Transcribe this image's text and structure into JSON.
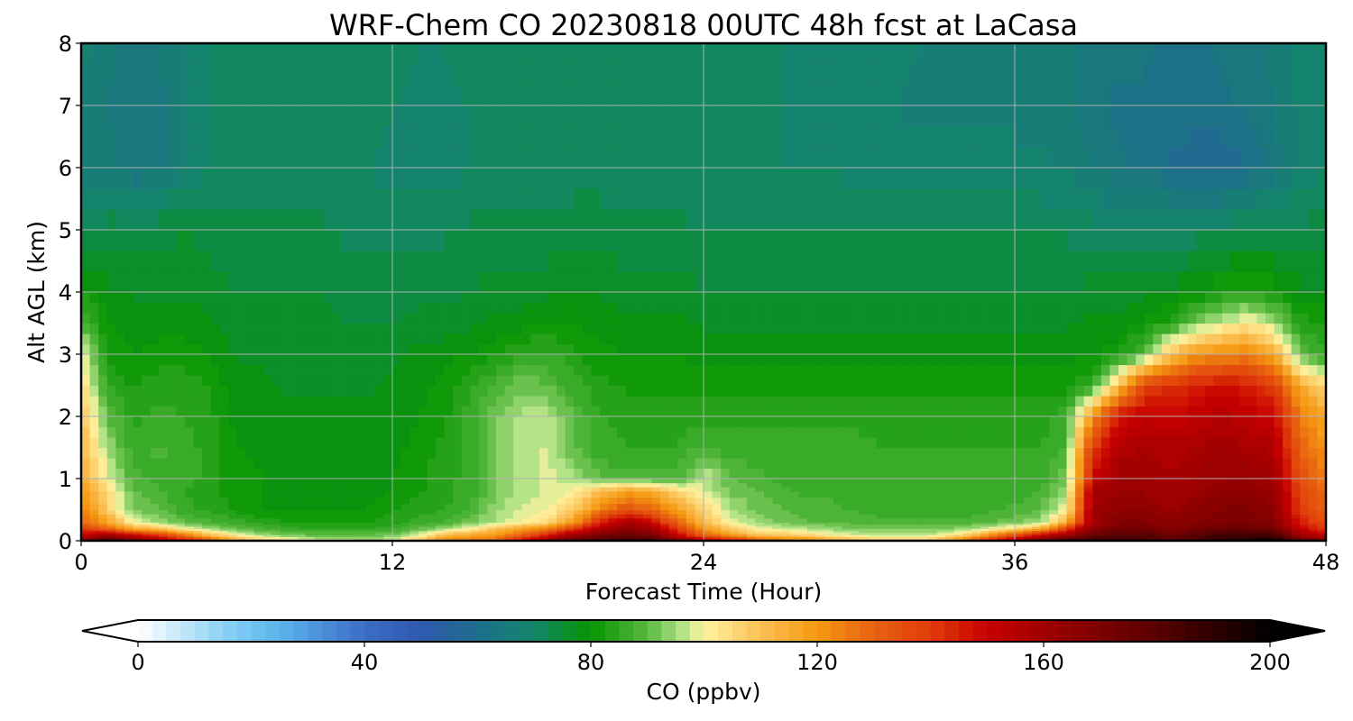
{
  "chart_data": {
    "type": "heatmap",
    "title": "WRF-Chem CO  20230818 00UTC 48h fcst at LaCasa",
    "xlabel": "Forecast Time (Hour)",
    "ylabel": "Alt AGL (km)",
    "xlim": [
      0,
      48
    ],
    "ylim": [
      0,
      8
    ],
    "xticks": [
      0,
      12,
      24,
      36,
      48
    ],
    "xtick_labels": [
      "0",
      "12",
      "24",
      "36",
      "48"
    ],
    "yticks": [
      0,
      1,
      2,
      3,
      4,
      5,
      6,
      7,
      8
    ],
    "ytick_labels": [
      "0",
      "1",
      "2",
      "3",
      "4",
      "5",
      "6",
      "7",
      "8"
    ],
    "grid": true,
    "x": [
      0,
      1,
      2,
      3,
      4,
      5,
      6,
      7,
      8,
      9,
      10,
      11,
      12,
      13,
      14,
      15,
      16,
      17,
      18,
      19,
      20,
      21,
      22,
      23,
      24,
      25,
      26,
      27,
      28,
      29,
      30,
      31,
      32,
      33,
      34,
      35,
      36,
      37,
      38,
      39,
      40,
      41,
      42,
      43,
      44,
      45,
      46,
      47,
      48
    ],
    "y": [
      0,
      0.1,
      0.2,
      0.3,
      0.5,
      0.8,
      1.0,
      1.5,
      2.0,
      2.5,
      3.0,
      3.5,
      4.0,
      5.0,
      6.0,
      7.0,
      8.0
    ],
    "z_units": "CO  (ppbv)",
    "z": [
      [
        165,
        190,
        170,
        160,
        150,
        135,
        120,
        110,
        105,
        100,
        98,
        95,
        100,
        110,
        125,
        130,
        130,
        150,
        170,
        180,
        185,
        190,
        190,
        170,
        160,
        150,
        140,
        130,
        130,
        120,
        115,
        110,
        110,
        115,
        130,
        150,
        160,
        175,
        190,
        190,
        185,
        185,
        180,
        185,
        190,
        195,
        200,
        180,
        175
      ],
      [
        150,
        160,
        150,
        140,
        125,
        110,
        100,
        95,
        92,
        90,
        90,
        90,
        92,
        98,
        110,
        115,
        120,
        130,
        145,
        160,
        170,
        175,
        170,
        150,
        130,
        120,
        110,
        108,
        105,
        100,
        98,
        96,
        96,
        98,
        105,
        120,
        135,
        150,
        160,
        175,
        180,
        180,
        175,
        180,
        185,
        185,
        185,
        160,
        150
      ],
      [
        140,
        130,
        115,
        110,
        100,
        95,
        90,
        88,
        86,
        85,
        85,
        85,
        86,
        90,
        95,
        100,
        110,
        118,
        125,
        140,
        155,
        165,
        160,
        140,
        120,
        108,
        100,
        98,
        96,
        94,
        92,
        92,
        92,
        92,
        94,
        98,
        105,
        115,
        140,
        165,
        172,
        172,
        168,
        172,
        175,
        175,
        172,
        150,
        140
      ],
      [
        130,
        118,
        100,
        95,
        90,
        88,
        86,
        84,
        82,
        82,
        82,
        82,
        84,
        86,
        88,
        92,
        96,
        100,
        105,
        120,
        145,
        158,
        150,
        130,
        112,
        100,
        95,
        92,
        90,
        90,
        89,
        88,
        88,
        88,
        88,
        90,
        92,
        95,
        115,
        160,
        168,
        168,
        165,
        168,
        170,
        170,
        168,
        145,
        135
      ],
      [
        125,
        108,
        92,
        90,
        86,
        84,
        82,
        80,
        80,
        80,
        80,
        80,
        82,
        84,
        85,
        88,
        94,
        98,
        100,
        108,
        125,
        135,
        130,
        118,
        106,
        96,
        92,
        90,
        88,
        88,
        87,
        86,
        86,
        86,
        86,
        87,
        88,
        90,
        100,
        160,
        165,
        165,
        162,
        165,
        168,
        168,
        165,
        140,
        130
      ],
      [
        120,
        105,
        90,
        88,
        85,
        83,
        81,
        80,
        79,
        79,
        79,
        79,
        80,
        82,
        84,
        86,
        92,
        96,
        98,
        100,
        110,
        118,
        115,
        106,
        98,
        92,
        90,
        88,
        87,
        87,
        86,
        85,
        85,
        85,
        85,
        86,
        86,
        88,
        95,
        158,
        162,
        162,
        160,
        162,
        165,
        165,
        162,
        138,
        128
      ],
      [
        115,
        100,
        88,
        87,
        86,
        84,
        81,
        80,
        79,
        79,
        79,
        79,
        80,
        82,
        84,
        86,
        92,
        96,
        98,
        96,
        90,
        88,
        88,
        88,
        98,
        90,
        88,
        87,
        86,
        86,
        86,
        85,
        85,
        85,
        85,
        85,
        86,
        86,
        92,
        150,
        160,
        160,
        158,
        160,
        162,
        162,
        160,
        135,
        125
      ],
      [
        112,
        95,
        86,
        88,
        86,
        84,
        80,
        79,
        78,
        78,
        78,
        78,
        79,
        81,
        83,
        86,
        92,
        96,
        98,
        90,
        86,
        85,
        85,
        85,
        88,
        86,
        86,
        86,
        86,
        86,
        86,
        85,
        85,
        85,
        85,
        85,
        85,
        85,
        88,
        140,
        155,
        158,
        156,
        158,
        160,
        158,
        156,
        130,
        120
      ],
      [
        110,
        90,
        84,
        86,
        85,
        83,
        79,
        78,
        78,
        78,
        78,
        78,
        79,
        80,
        82,
        86,
        92,
        96,
        96,
        90,
        85,
        84,
        84,
        84,
        84,
        84,
        84,
        84,
        84,
        84,
        84,
        84,
        84,
        84,
        84,
        84,
        84,
        84,
        86,
        120,
        148,
        152,
        150,
        152,
        155,
        152,
        150,
        125,
        115
      ],
      [
        105,
        85,
        82,
        84,
        84,
        82,
        78,
        78,
        77,
        77,
        77,
        77,
        78,
        79,
        81,
        84,
        88,
        92,
        90,
        86,
        83,
        82,
        82,
        82,
        81,
        81,
        81,
        81,
        81,
        81,
        81,
        81,
        81,
        81,
        81,
        81,
        81,
        81,
        82,
        85,
        110,
        138,
        142,
        145,
        148,
        145,
        140,
        115,
        105
      ],
      [
        100,
        82,
        80,
        81,
        81,
        80,
        77,
        77,
        76,
        76,
        76,
        76,
        77,
        78,
        79,
        80,
        82,
        85,
        86,
        83,
        81,
        80,
        80,
        80,
        79,
        79,
        79,
        79,
        79,
        79,
        79,
        79,
        79,
        79,
        79,
        79,
        79,
        79,
        79,
        80,
        82,
        90,
        110,
        120,
        122,
        125,
        115,
        90,
        85
      ],
      [
        90,
        80,
        79,
        79,
        79,
        78,
        76,
        76,
        76,
        76,
        75,
        75,
        75,
        76,
        76,
        77,
        78,
        79,
        80,
        80,
        79,
        78,
        78,
        78,
        77,
        77,
        77,
        77,
        77,
        77,
        77,
        77,
        77,
        77,
        77,
        77,
        77,
        77,
        77,
        78,
        78,
        80,
        84,
        92,
        98,
        102,
        96,
        84,
        82
      ],
      [
        82,
        78,
        77,
        77,
        77,
        76,
        75,
        75,
        75,
        75,
        74,
        74,
        74,
        74,
        74,
        75,
        76,
        76,
        77,
        78,
        77,
        76,
        76,
        76,
        75,
        75,
        75,
        75,
        75,
        75,
        75,
        75,
        75,
        75,
        75,
        75,
        75,
        75,
        75,
        76,
        76,
        77,
        78,
        80,
        82,
        84,
        82,
        78,
        78
      ],
      [
        72,
        74,
        74,
        74,
        75,
        74,
        73,
        73,
        73,
        73,
        72,
        72,
        72,
        72,
        72,
        73,
        73,
        73,
        73,
        74,
        74,
        73,
        73,
        73,
        72,
        72,
        72,
        72,
        72,
        72,
        72,
        72,
        72,
        72,
        72,
        72,
        72,
        72,
        72,
        71,
        70,
        70,
        70,
        71,
        72,
        73,
        73,
        73,
        74
      ],
      [
        66,
        66,
        63,
        64,
        68,
        70,
        71,
        71,
        71,
        71,
        70,
        70,
        69,
        68,
        68,
        70,
        71,
        71,
        71,
        71,
        71,
        71,
        71,
        71,
        70,
        70,
        70,
        70,
        70,
        70,
        69,
        69,
        68,
        68,
        68,
        68,
        68,
        68,
        67,
        65,
        63,
        62,
        60,
        58,
        58,
        60,
        64,
        68,
        70
      ],
      [
        67,
        65,
        63,
        64,
        68,
        70,
        71,
        72,
        72,
        72,
        71,
        71,
        70,
        69,
        69,
        70,
        71,
        71,
        71,
        71,
        72,
        72,
        72,
        72,
        71,
        70,
        70,
        70,
        69,
        69,
        68,
        68,
        67,
        67,
        67,
        67,
        67,
        66,
        66,
        63,
        62,
        62,
        61,
        61,
        62,
        63,
        65,
        68,
        70
      ],
      [
        68,
        66,
        64,
        65,
        68,
        70,
        71,
        72,
        72,
        72,
        72,
        72,
        71,
        70,
        70,
        71,
        71,
        72,
        72,
        72,
        72,
        72,
        72,
        72,
        71,
        71,
        70,
        70,
        70,
        69,
        68,
        68,
        68,
        67,
        67,
        67,
        67,
        66,
        66,
        64,
        63,
        63,
        62,
        62,
        63,
        64,
        66,
        68,
        70
      ]
    ],
    "colorbar": {
      "label": "CO  (ppbv)",
      "min": 0,
      "max": 200,
      "ticks": [
        0,
        40,
        80,
        120,
        160,
        200
      ],
      "tick_labels": [
        "0",
        "40",
        "80",
        "120",
        "160",
        "200"
      ],
      "extend": "both",
      "levels": 80,
      "colormap": [
        [
          0,
          "#ffffff"
        ],
        [
          15,
          "#8cd2f5"
        ],
        [
          25,
          "#5ab4ec"
        ],
        [
          40,
          "#3c6cc6"
        ],
        [
          50,
          "#3058b0"
        ],
        [
          60,
          "#1e6e8a"
        ],
        [
          70,
          "#12866a"
        ],
        [
          80,
          "#069400"
        ],
        [
          90,
          "#58b840"
        ],
        [
          97,
          "#c0e890"
        ],
        [
          100,
          "#fff3a0"
        ],
        [
          110,
          "#fcc054"
        ],
        [
          120,
          "#f49810"
        ],
        [
          130,
          "#e86210"
        ],
        [
          140,
          "#e03c0a"
        ],
        [
          150,
          "#c80000"
        ],
        [
          160,
          "#a00000"
        ],
        [
          180,
          "#580000"
        ],
        [
          200,
          "#000000"
        ]
      ],
      "under_color": "#ffffff",
      "over_color": "#000000"
    }
  }
}
